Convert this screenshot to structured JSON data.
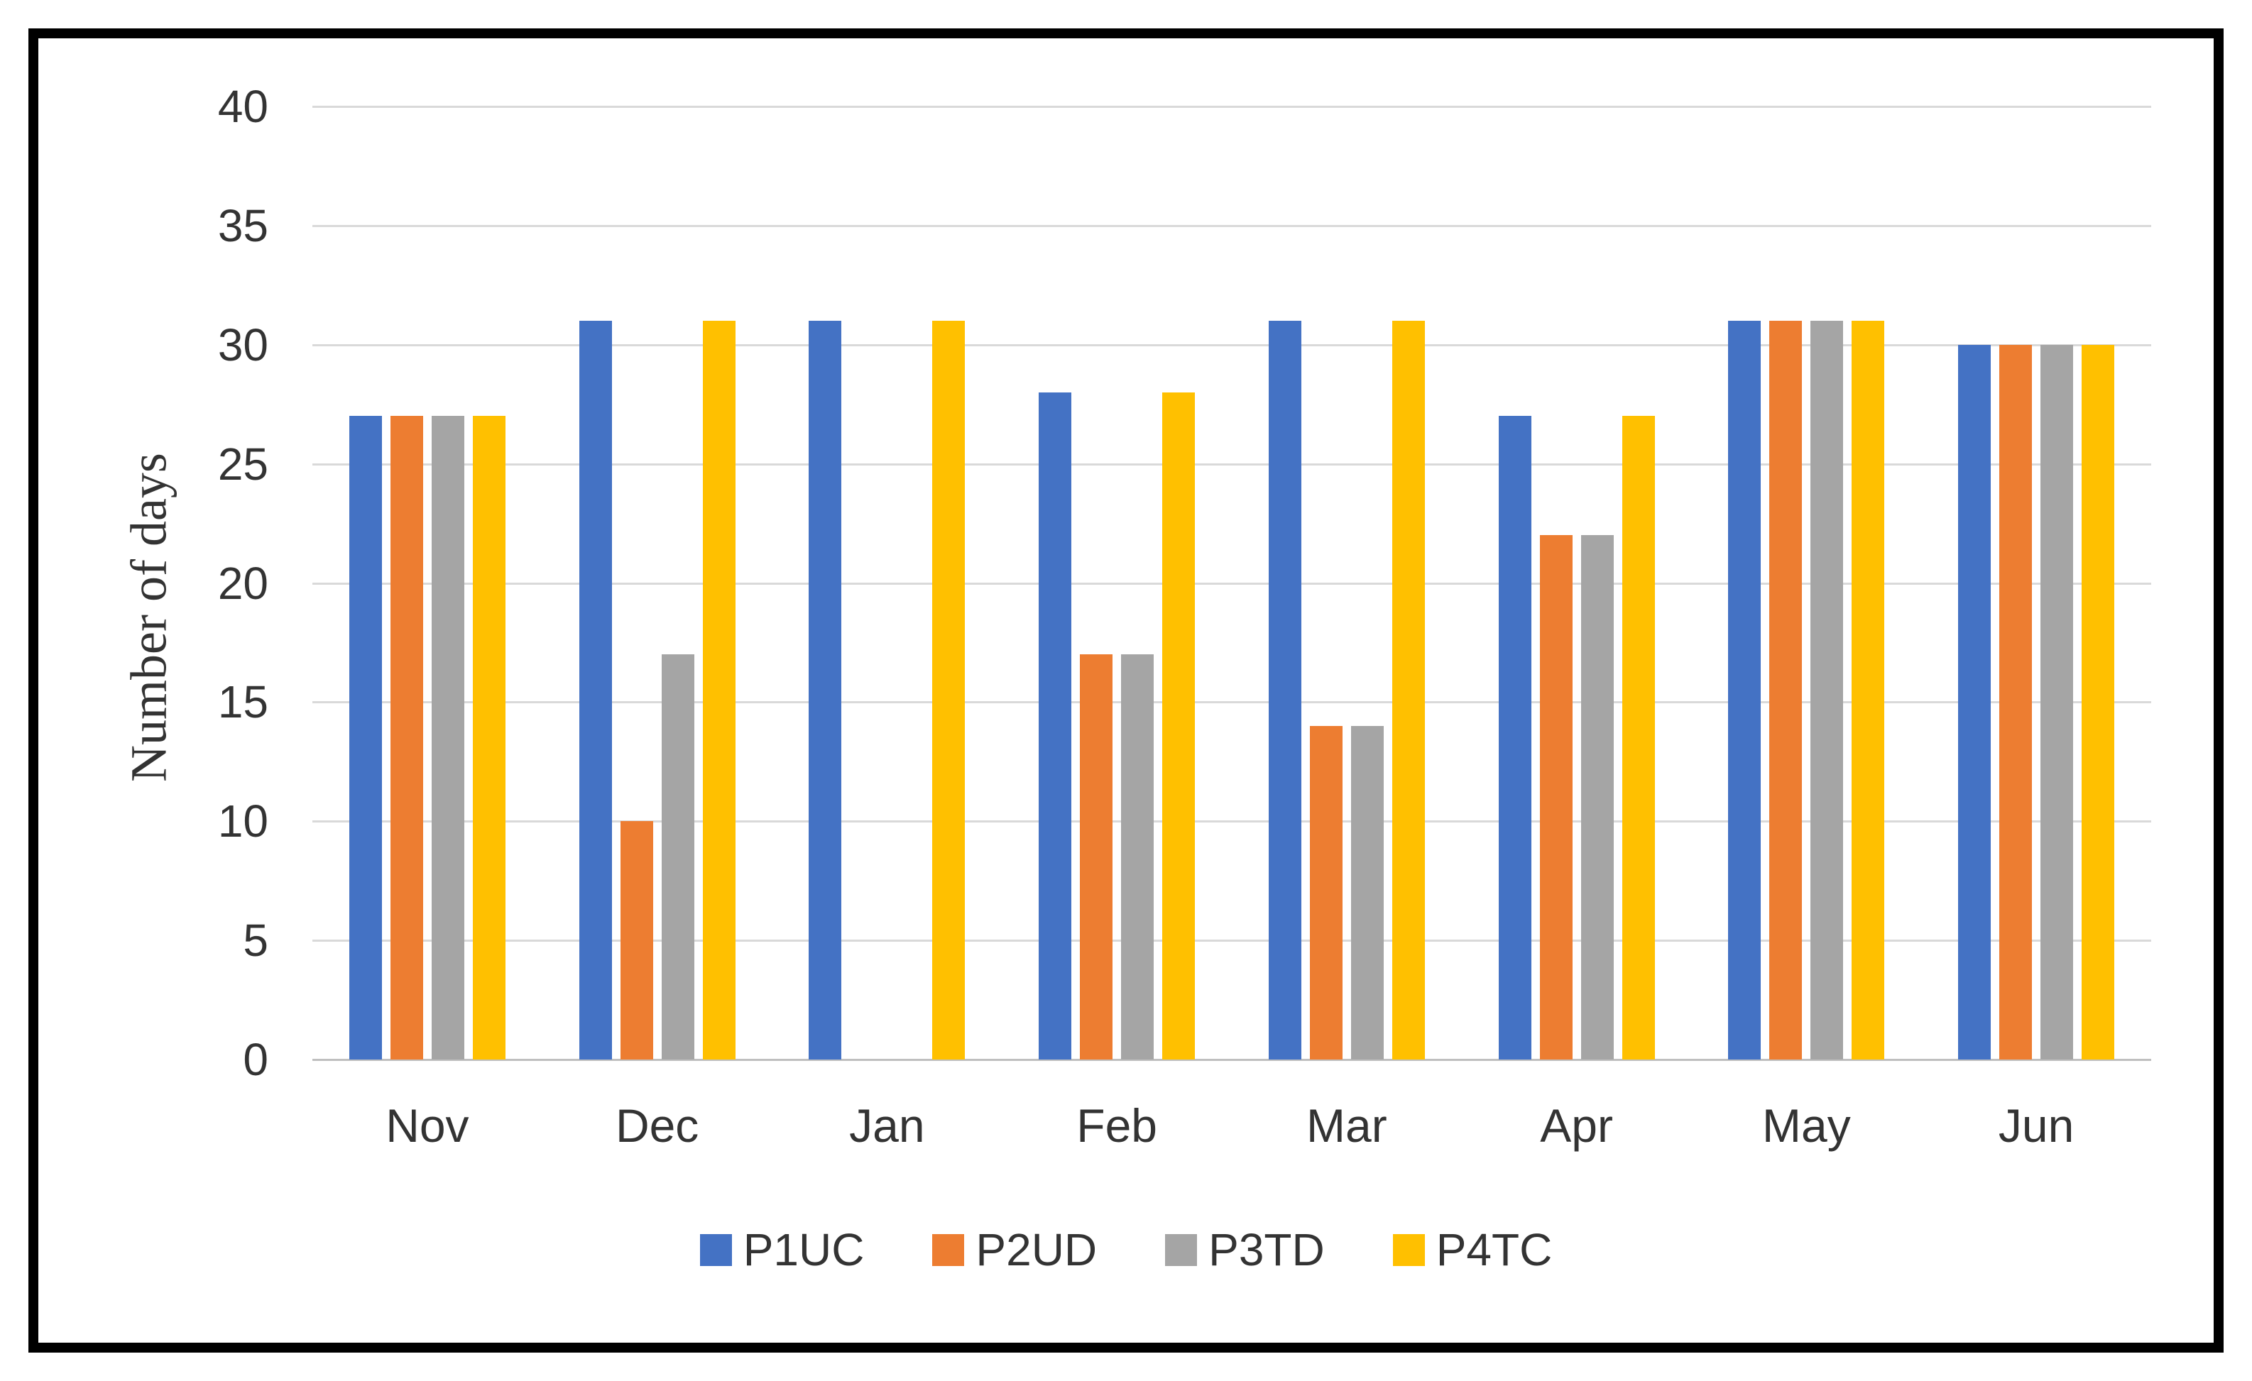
{
  "chart_data": {
    "type": "bar",
    "title": "",
    "categories": [
      "Nov",
      "Dec",
      "Jan",
      "Feb",
      "Mar",
      "Apr",
      "May",
      "Jun"
    ],
    "series": [
      {
        "name": "P1UC",
        "color": "#4472C4",
        "values": [
          27,
          31,
          31,
          28,
          31,
          27,
          31,
          30
        ]
      },
      {
        "name": "P2UD",
        "color": "#ED7D31",
        "values": [
          27,
          10,
          0,
          17,
          14,
          22,
          31,
          30
        ]
      },
      {
        "name": "P3TD",
        "color": "#A5A5A5",
        "values": [
          27,
          17,
          0,
          17,
          14,
          22,
          31,
          30
        ]
      },
      {
        "name": "P4TC",
        "color": "#FFC000",
        "values": [
          27,
          31,
          31,
          28,
          31,
          27,
          31,
          30
        ]
      }
    ],
    "xlabel": "",
    "ylabel": "Number of days",
    "ylim": [
      0,
      40
    ],
    "yticks": [
      0,
      5,
      10,
      15,
      20,
      25,
      30,
      35,
      40
    ],
    "grid": true,
    "legend_position": "bottom"
  },
  "colors": {
    "gridline": "#d9d9d9",
    "axis_line": "#bfbfbf",
    "text": "#333333",
    "frame_border": "#000000",
    "background": "#ffffff"
  }
}
